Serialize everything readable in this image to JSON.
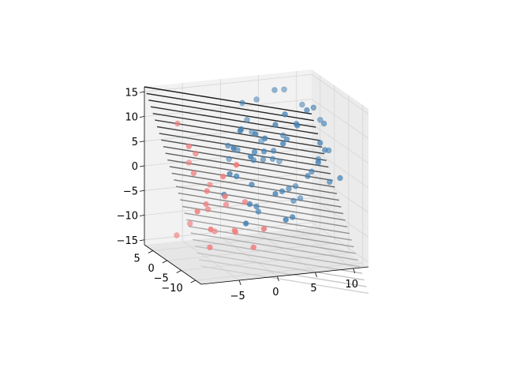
{
  "chart_data": {
    "type": "scatter",
    "projection": "3d",
    "view": "elevated perspective, x axis across bottom-right, y axis bottom-left, z axis left",
    "xlim": [
      -10,
      12
    ],
    "ylim": [
      -12,
      8
    ],
    "zlim": [
      -16,
      16
    ],
    "x_ticks": [
      -5,
      0,
      5,
      10
    ],
    "y_ticks": [
      5,
      0,
      -5,
      -10
    ],
    "z_ticks": [
      15,
      10,
      5,
      0,
      -5,
      -10,
      -15
    ],
    "grid": true,
    "colors": {
      "class_a": "#4682b4",
      "class_b": "#f08080",
      "surface_dark": "#1a1a1a",
      "surface_light": "#d0d0d0",
      "pane": "#f2f2f2",
      "gridline": "#d6d6d6"
    },
    "series": [
      {
        "color": "#4682b4",
        "points": [
          [
            2,
            -6,
            12
          ],
          [
            4,
            -4,
            13
          ],
          [
            -1,
            -7,
            11
          ],
          [
            6,
            -3,
            10
          ],
          [
            8,
            -1,
            12
          ],
          [
            10,
            2,
            11
          ],
          [
            1,
            -5,
            9
          ],
          [
            3,
            -6,
            8
          ],
          [
            5,
            -2,
            7
          ],
          [
            7,
            0,
            9
          ],
          [
            9,
            -3,
            6
          ],
          [
            11,
            1,
            8
          ],
          [
            0,
            -4,
            6
          ],
          [
            2,
            -2,
            5
          ],
          [
            4,
            0,
            4
          ],
          [
            6,
            2,
            6
          ],
          [
            8,
            -5,
            3
          ],
          [
            10,
            -2,
            4
          ],
          [
            -2,
            -8,
            7
          ],
          [
            1,
            -1,
            3
          ],
          [
            3,
            1,
            2
          ],
          [
            5,
            3,
            1
          ],
          [
            7,
            -4,
            0
          ],
          [
            9,
            0,
            -1
          ],
          [
            11,
            3,
            0
          ],
          [
            0,
            -3,
            -1
          ],
          [
            2,
            -6,
            -2
          ],
          [
            4,
            -3,
            -3
          ],
          [
            6,
            0,
            -4
          ],
          [
            8,
            3,
            -5
          ],
          [
            -1,
            -5,
            -4
          ],
          [
            1,
            -2,
            -6
          ],
          [
            3,
            -7,
            -7
          ],
          [
            5,
            -4,
            -8
          ],
          [
            -3,
            -9,
            -6
          ],
          [
            7,
            1,
            -7
          ],
          [
            9,
            4,
            -8
          ],
          [
            11,
            -1,
            -3
          ],
          [
            -4,
            -6,
            3
          ],
          [
            -2,
            -3,
            1
          ],
          [
            0,
            2,
            4
          ],
          [
            2,
            4,
            9
          ],
          [
            4,
            6,
            12
          ],
          [
            6,
            5,
            14
          ],
          [
            8,
            7,
            13
          ],
          [
            10,
            6,
            10
          ],
          [
            12,
            5,
            7
          ],
          [
            12,
            2,
            2
          ],
          [
            12,
            -2,
            -2
          ],
          [
            -5,
            -10,
            10
          ],
          [
            -3,
            -7,
            12
          ],
          [
            -1,
            -2,
            10
          ],
          [
            1,
            3,
            13
          ],
          [
            3,
            5,
            6
          ],
          [
            5,
            7,
            3
          ],
          [
            7,
            6,
            -1
          ],
          [
            -2,
            0,
            6
          ],
          [
            0,
            5,
            1
          ],
          [
            -4,
            -4,
            -2
          ],
          [
            2,
            0,
            -8
          ]
        ]
      },
      {
        "color": "#f08080",
        "points": [
          [
            -8,
            -10,
            -6
          ],
          [
            -9,
            -8,
            -3
          ],
          [
            -7,
            -6,
            0
          ],
          [
            -8,
            -4,
            3
          ],
          [
            -6,
            -9,
            4
          ],
          [
            -7,
            -2,
            6
          ],
          [
            -9,
            -5,
            9
          ],
          [
            -5,
            -7,
            -1
          ],
          [
            -6,
            -3,
            -4
          ],
          [
            -4,
            -8,
            -8
          ],
          [
            -5,
            -1,
            -6
          ],
          [
            -3,
            -5,
            -9
          ],
          [
            -7,
            0,
            -9
          ],
          [
            -2,
            -9,
            -11
          ],
          [
            -8,
            2,
            -12
          ],
          [
            -4,
            1,
            -2
          ],
          [
            -3,
            -2,
            -5
          ],
          [
            -6,
            3,
            2
          ],
          [
            -9,
            -1,
            12
          ],
          [
            -5,
            -11,
            7
          ],
          [
            -2,
            -6,
            -3
          ],
          [
            -1,
            -10,
            -7
          ],
          [
            -7,
            -7,
            -11
          ],
          [
            -3,
            2,
            -12
          ]
        ]
      }
    ]
  }
}
